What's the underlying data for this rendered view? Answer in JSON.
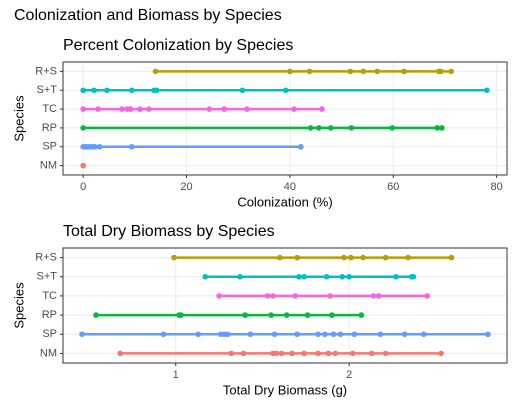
{
  "title": "Colonization and Biomass by Species",
  "chart_data": [
    {
      "type": "dotrange",
      "title": "Percent Colonization by Species",
      "xlabel": "Colonization (%)",
      "ylabel": "Species",
      "categories": [
        "NM",
        "SP",
        "RP",
        "TC",
        "S+T",
        "R+S"
      ],
      "colors": [
        "#F8766D",
        "#619CFF",
        "#00BA38",
        "#F564E3",
        "#00BFC4",
        "#B79F00"
      ],
      "values": [
        [
          0
        ],
        [
          0,
          0.4,
          0.8,
          1.2,
          1.7,
          2.3,
          3.2,
          9.4,
          42.1
        ],
        [
          0,
          44,
          45.6,
          47.9,
          51.9,
          59.8,
          68.5,
          69.4
        ],
        [
          0,
          2.9,
          7.5,
          8.5,
          9.2,
          11,
          12.7,
          24.4,
          27.3,
          31.7,
          40.8,
          46.2
        ],
        [
          0,
          2.1,
          4.6,
          9.4,
          13.7,
          14.2,
          30.8,
          39.2,
          78.1
        ],
        [
          14,
          40,
          43.8,
          51.7,
          54.2,
          56.9,
          62.1,
          68.8,
          69.2,
          71.2
        ]
      ],
      "xlim": [
        -3.9,
        82
      ],
      "xticks": [
        0,
        20,
        40,
        60,
        80
      ],
      "grid": true
    },
    {
      "type": "dotrange",
      "title": "Total Dry Biomass by Species",
      "xlabel": "Total Dry Biomass (g)",
      "ylabel": "Species",
      "categories": [
        "NM",
        "SP",
        "RP",
        "TC",
        "S+T",
        "R+S"
      ],
      "colors": [
        "#F8766D",
        "#619CFF",
        "#00BA38",
        "#F564E3",
        "#00BFC4",
        "#B79F00"
      ],
      "values": [
        [
          0.68,
          1.32,
          1.39,
          1.56,
          1.58,
          1.61,
          1.67,
          1.74,
          1.82,
          1.88,
          1.92,
          2.02,
          2.13,
          2.21,
          2.53
        ],
        [
          0.46,
          0.93,
          1.13,
          1.26,
          1.28,
          1.3,
          1.43,
          1.57,
          1.7,
          1.82,
          1.86,
          1.91,
          1.95,
          2.03,
          2.18,
          2.32,
          2.43,
          2.8
        ],
        [
          0.54,
          1.02,
          1.03,
          1.4,
          1.55,
          1.64,
          1.76,
          1.9,
          2.07
        ],
        [
          1.25,
          1.53,
          1.56,
          1.69,
          1.89,
          2.14,
          2.17,
          2.45
        ],
        [
          1.17,
          1.37,
          1.71,
          1.74,
          1.87,
          1.96,
          2,
          2.27,
          2.36,
          2.37
        ],
        [
          0.99,
          1.6,
          1.7,
          1.97,
          2.01,
          2.08,
          2.21,
          2.34,
          2.59
        ]
      ],
      "xlim": [
        0.35,
        2.91
      ],
      "xticks": [
        1,
        2
      ],
      "grid": true
    }
  ]
}
